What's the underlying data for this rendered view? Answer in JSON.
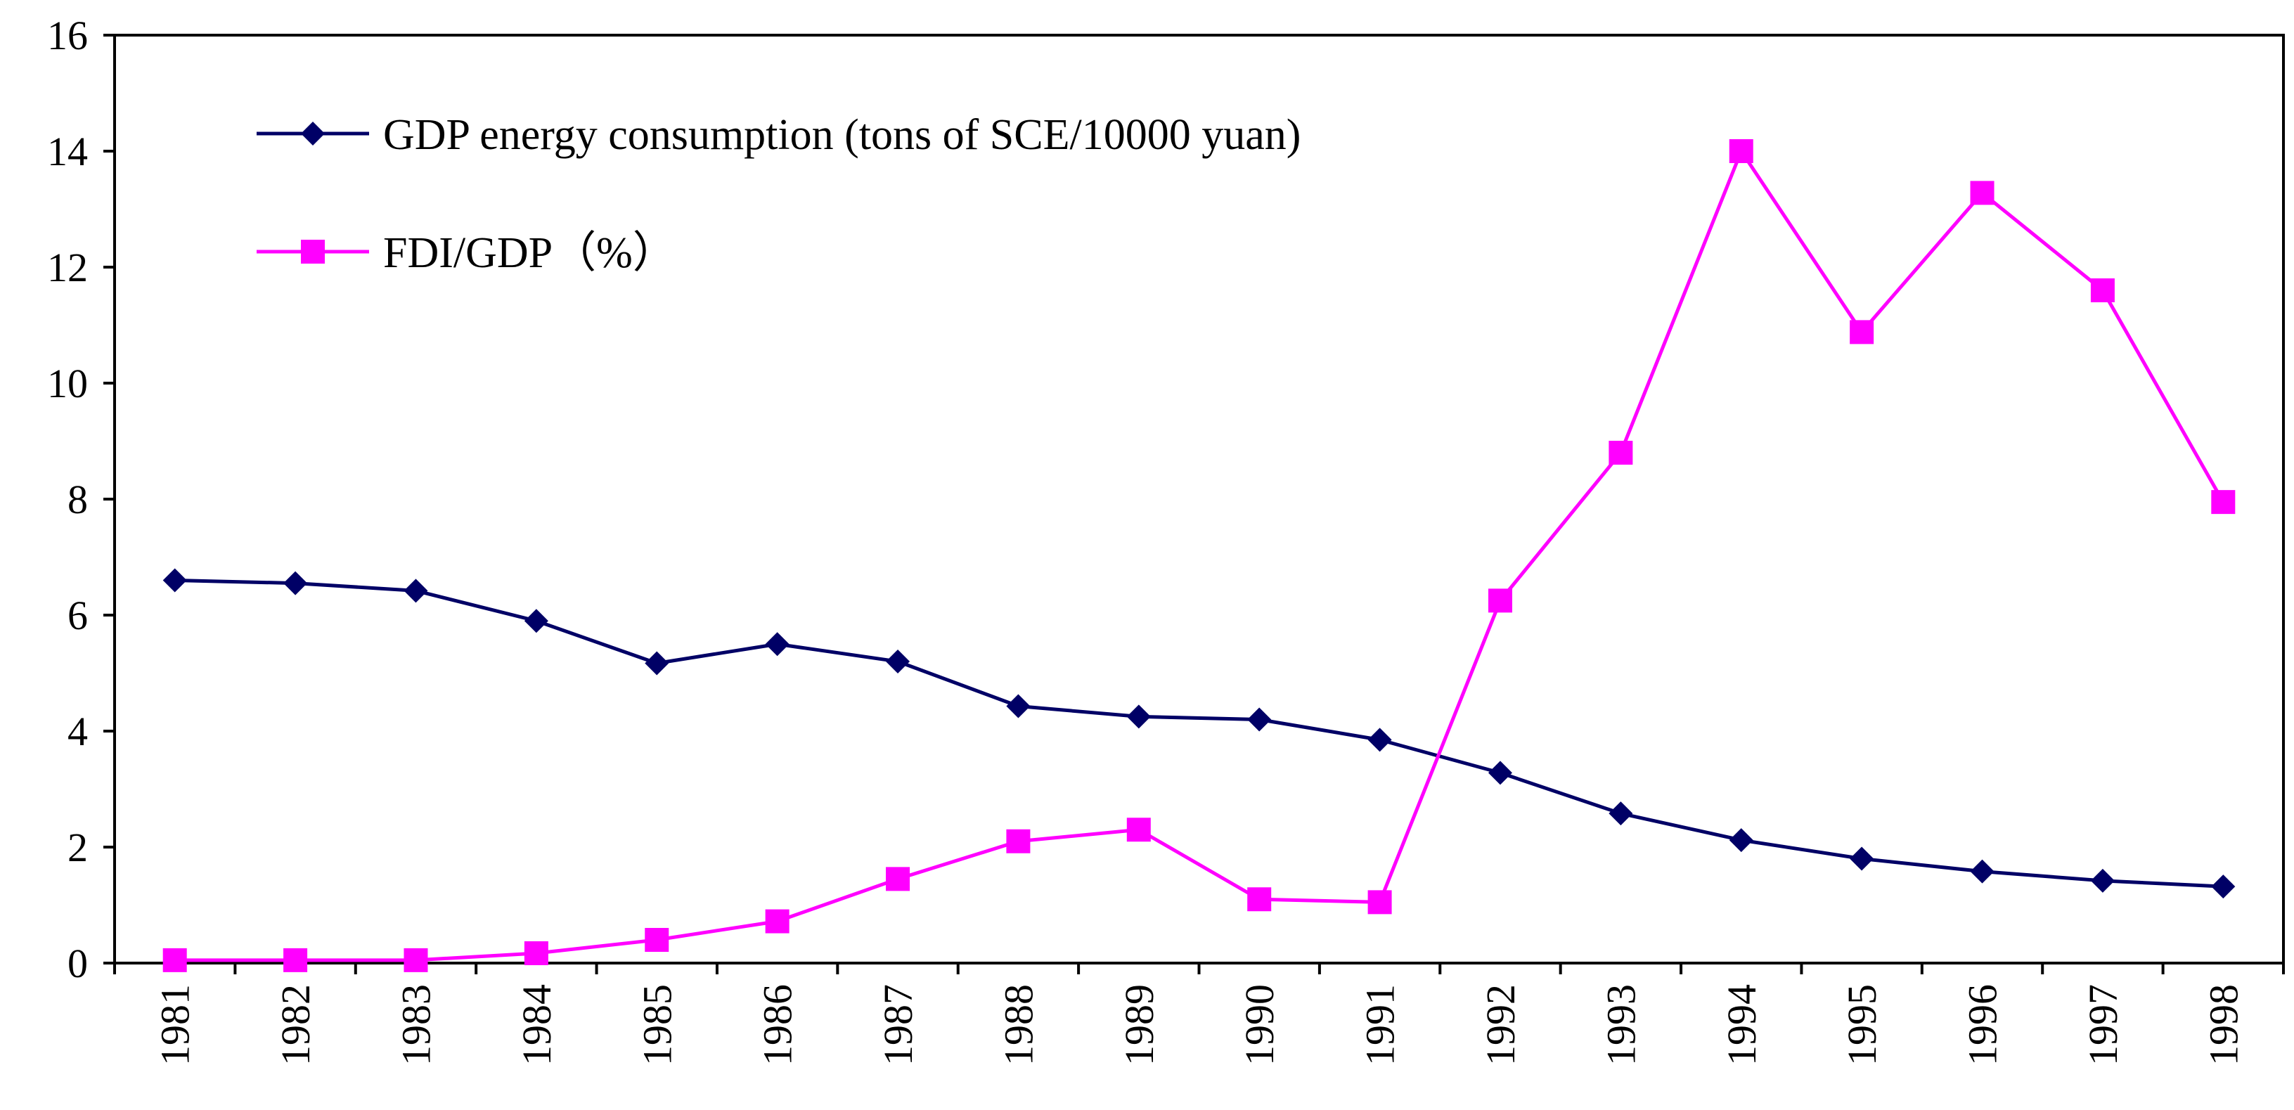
{
  "chart_data": {
    "type": "line",
    "title": "",
    "xlabel": "",
    "ylabel": "",
    "ylim": [
      0,
      16
    ],
    "y_ticks": [
      0,
      2,
      4,
      6,
      8,
      10,
      12,
      14,
      16
    ],
    "grid": false,
    "legend_position": "top-left",
    "categories": [
      "1981",
      "1982",
      "1983",
      "1984",
      "1985",
      "1986",
      "1987",
      "1988",
      "1989",
      "1990",
      "1991",
      "1992",
      "1993",
      "1994",
      "1995",
      "1996",
      "1997",
      "1998"
    ],
    "series": [
      {
        "name": "GDP energy consumption (tons of SCE/10000 yuan)",
        "color": "#000066",
        "marker": "diamond",
        "values": [
          6.6,
          6.55,
          6.42,
          5.9,
          5.17,
          5.5,
          5.2,
          4.43,
          4.25,
          4.2,
          3.85,
          3.28,
          2.58,
          2.12,
          1.8,
          1.58,
          1.42,
          1.32
        ]
      },
      {
        "name": "FDI/GDP（%）",
        "color": "#ff00ff",
        "marker": "square",
        "values": [
          0.05,
          0.05,
          0.05,
          0.17,
          0.4,
          0.72,
          1.45,
          2.1,
          2.3,
          1.1,
          1.05,
          6.25,
          8.8,
          14.0,
          10.88,
          13.28,
          11.6,
          7.95
        ]
      }
    ]
  }
}
